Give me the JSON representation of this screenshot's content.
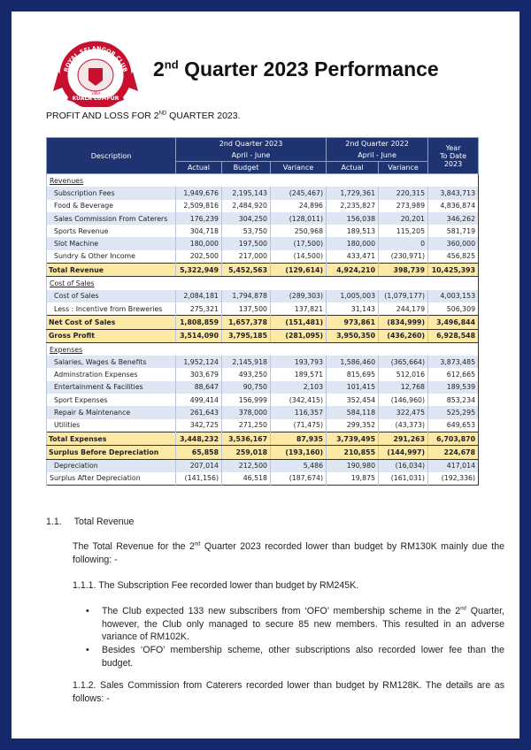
{
  "header": {
    "logo": {
      "name": "ROYAL SELANGOR CLUB",
      "place": "KUALA LUMPUR",
      "year": "1884"
    },
    "title": [
      "2",
      "nd",
      "Quarter 2023 Performance"
    ],
    "subtitle": [
      "PROFIT AND LOSS FOR 2",
      "ND",
      " QUARTER 2023."
    ]
  },
  "table": {
    "head": {
      "description": "Description",
      "group2023": "2nd Quarter 2023",
      "period2023": "April - June",
      "group2022": "2nd Quarter 2022",
      "period2022": "April - June",
      "ytd": [
        "Year",
        "To Date",
        "2023"
      ],
      "sub": [
        "Actual",
        "Budget",
        "Variance",
        "Actual",
        "Variance"
      ]
    },
    "rows": [
      [
        "Revenues"
      ],
      [
        "Subscription Fees",
        "1,949,676",
        "2,195,143",
        "(245,467)",
        "1,729,361",
        "220,315",
        "3,843,713"
      ],
      [
        "Food & Beverage",
        "2,509,816",
        "2,484,920",
        "24,896",
        "2,235,827",
        "273,989",
        "4,836,874"
      ],
      [
        "Sales Commission From Caterers",
        "176,239",
        "304,250",
        "(128,011)",
        "156,038",
        "20,201",
        "346,262"
      ],
      [
        "Sports Revenue",
        "304,718",
        "53,750",
        "250,968",
        "189,513",
        "115,205",
        "581,719"
      ],
      [
        "Slot Machine",
        "180,000",
        "197,500",
        "(17,500)",
        "180,000",
        "0",
        "360,000"
      ],
      [
        "Sundry & Other Income",
        "202,500",
        "217,000",
        "(14,500)",
        "433,471",
        "(230,971)",
        "456,825"
      ],
      [
        "Total Revenue",
        "5,322,949",
        "5,452,563",
        "(129,614)",
        "4,924,210",
        "398,739",
        "10,425,393"
      ],
      [
        "Cost of Sales"
      ],
      [
        "Cost of Sales",
        "2,084,181",
        "1,794,878",
        "(289,303)",
        "1,005,003",
        "(1,079,177)",
        "4,003,153"
      ],
      [
        "Less : Incentive from Breweries",
        "275,321",
        "137,500",
        "137,821",
        "31,143",
        "244,179",
        "506,309"
      ],
      [
        "Net Cost of Sales",
        "1,808,859",
        "1,657,378",
        "(151,481)",
        "973,861",
        "(834,999)",
        "3,496,844"
      ],
      [
        "Gross Profit",
        "3,514,090",
        "3,795,185",
        "(281,095)",
        "3,950,350",
        "(436,260)",
        "6,928,548"
      ],
      [
        "Expenses"
      ],
      [
        "Salaries, Wages & Benefits",
        "1,952,124",
        "2,145,918",
        "193,793",
        "1,586,460",
        "(365,664)",
        "3,873,485"
      ],
      [
        "Adminstration Expenses",
        "303,679",
        "493,250",
        "189,571",
        "815,695",
        "512,016",
        "612,665"
      ],
      [
        "Entertainment & Facilities",
        "88,647",
        "90,750",
        "2,103",
        "101,415",
        "12,768",
        "189,539"
      ],
      [
        "Sport Expenses",
        "499,414",
        "156,999",
        "(342,415)",
        "352,454",
        "(146,960)",
        "853,234"
      ],
      [
        "Repair & Maintenance",
        "261,643",
        "378,000",
        "116,357",
        "584,118",
        "322,475",
        "525,295"
      ],
      [
        "Utilities",
        "342,725",
        "271,250",
        "(71,475)",
        "299,352",
        "(43,373)",
        "649,653"
      ],
      [
        "Total Expenses",
        "3,448,232",
        "3,536,167",
        "87,935",
        "3,739,495",
        "291,263",
        "6,703,870"
      ],
      [
        "Surplus Before Depreciation",
        "65,858",
        "259,018",
        "(193,160)",
        "210,855",
        "(144,997)",
        "224,678"
      ],
      [
        "Depreciation",
        "207,014",
        "212,500",
        "5,486",
        "190,980",
        "(16,034)",
        "417,014"
      ],
      [
        "Surplus After Depreciation",
        "(141,156)",
        "46,518",
        "(187,674)",
        "19,875",
        "(161,031)",
        "(192,336)"
      ]
    ]
  },
  "body": {
    "section": {
      "number": "1.1.",
      "title": "Total Revenue"
    },
    "intro": [
      "The Total Revenue for the 2",
      "nd",
      " Quarter 2023 recorded lower than budget by RM130K mainly due the following: -"
    ],
    "item1": {
      "number": "1.1.1.",
      "text": "The Subscription Fee recorded lower than budget by RM245K."
    },
    "bullets": [
      [
        "The Club expected 133 new subscribers from ‘OFO’ membership scheme in the 2",
        "nd",
        " Quarter, however, the Club only managed to secure 85 new members. This resulted in an adverse variance of RM102K."
      ],
      [
        "Besides ‘OFO’ membership scheme, other subscriptions also recorded lower fee than the budget."
      ]
    ],
    "item2": {
      "number": "1.1.2.",
      "text": "Sales Commission from Caterers recorded lower than budget by RM128K. The details are as follows: -"
    }
  }
}
